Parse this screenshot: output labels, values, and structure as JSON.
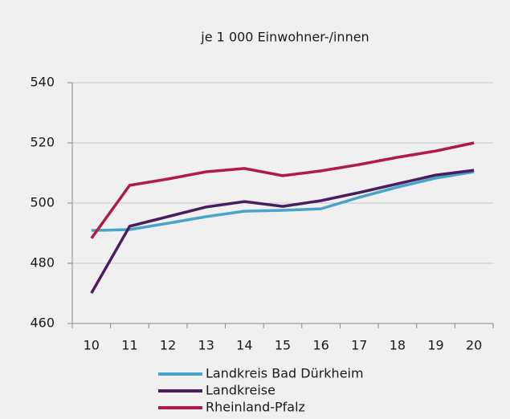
{
  "chart_data": {
    "type": "line",
    "title": "je 1 000 Einwohner-/innen",
    "categories": [
      "10",
      "11",
      "12",
      "13",
      "14",
      "15",
      "16",
      "17",
      "18",
      "19",
      "20"
    ],
    "series": [
      {
        "name": "Landkreis Bad Dürkheim",
        "color": "#4aa3c8",
        "values": [
          490.9,
          491.2,
          493.3,
          495.5,
          497.3,
          497.6,
          498.1,
          501.9,
          505.3,
          508.3,
          510.4
        ]
      },
      {
        "name": "Landkreise",
        "color": "#4c1d5e",
        "values": [
          470.1,
          492.3,
          495.5,
          498.7,
          500.5,
          498.9,
          500.8,
          503.5,
          506.4,
          509.3,
          510.9
        ]
      },
      {
        "name": "Rheinland-Pfalz",
        "color": "#b01c45",
        "values": [
          488.3,
          505.9,
          508.0,
          510.4,
          511.5,
          509.1,
          510.7,
          512.8,
          515.2,
          517.3,
          520.0
        ]
      }
    ],
    "ylim": [
      460,
      540
    ],
    "yticks": [
      460,
      480,
      500,
      520,
      540
    ],
    "grid": true
  }
}
